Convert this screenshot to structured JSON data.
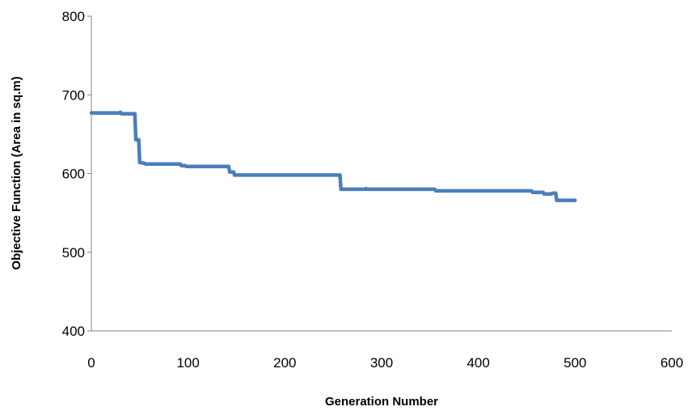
{
  "chart_data": {
    "type": "line",
    "title": "",
    "xlabel": "Generation Number",
    "ylabel": "Objective Function (Area in sq.m)",
    "xlim": [
      0,
      600
    ],
    "ylim": [
      400,
      800
    ],
    "x_ticks": [
      "0",
      "100",
      "200",
      "300",
      "400",
      "500",
      "600"
    ],
    "y_ticks": [
      "400",
      "500",
      "600",
      "700",
      "800"
    ],
    "grid": false,
    "legend": "none",
    "series": [
      {
        "color": "#4a7ebb",
        "points": [
          [
            0,
            677
          ],
          [
            30,
            677
          ],
          [
            30,
            678
          ],
          [
            31,
            676
          ],
          [
            45,
            676
          ],
          [
            46,
            643
          ],
          [
            49,
            643
          ],
          [
            50,
            614
          ],
          [
            55,
            613
          ],
          [
            56,
            612
          ],
          [
            92,
            612
          ],
          [
            93,
            610
          ],
          [
            97,
            610
          ],
          [
            98,
            609
          ],
          [
            142,
            609
          ],
          [
            143,
            602
          ],
          [
            147,
            602
          ],
          [
            148,
            598
          ],
          [
            257,
            598
          ],
          [
            258,
            580
          ],
          [
            283,
            580
          ],
          [
            284,
            581
          ],
          [
            285,
            580
          ],
          [
            355,
            580
          ],
          [
            356,
            578
          ],
          [
            455,
            578
          ],
          [
            456,
            576
          ],
          [
            467,
            576
          ],
          [
            468,
            574
          ],
          [
            475,
            574
          ],
          [
            477,
            575
          ],
          [
            480,
            575
          ],
          [
            481,
            566
          ],
          [
            500,
            566
          ]
        ]
      }
    ]
  }
}
